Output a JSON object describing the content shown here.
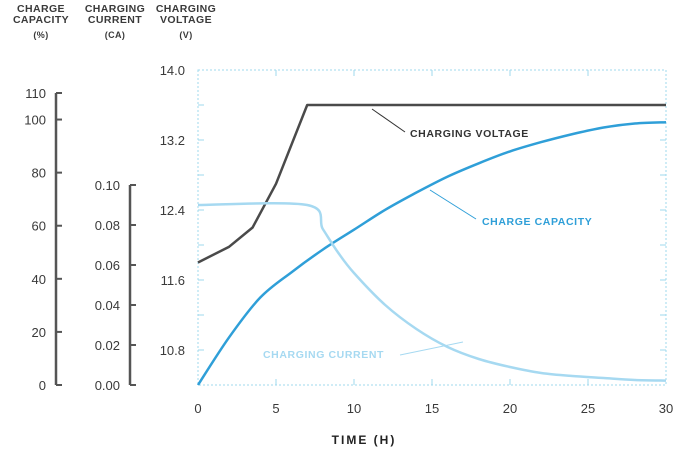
{
  "axis_headers": {
    "capacity": {
      "line1": "CHARGE",
      "line2": "CAPACITY",
      "unit": "(%)"
    },
    "current": {
      "line1": "CHARGING",
      "line2": "CURRENT",
      "unit": "(CA)"
    },
    "voltage": {
      "line1": "CHARGING",
      "line2": "VOLTAGE",
      "unit": "(V)"
    }
  },
  "colors": {
    "voltage": "#4a4a4a",
    "capacity": "#2f9fd8",
    "current": "#a6d9f1",
    "grid": "#9fd8ee",
    "axis": "#555555"
  },
  "chart_data": {
    "type": "line",
    "xlabel": "TIME (H)",
    "x_ticks": [
      "0",
      "5",
      "10",
      "15",
      "20",
      "25",
      "30"
    ],
    "xlim": [
      0,
      30
    ],
    "axes": {
      "voltage": {
        "ylim": [
          10.4,
          14.0
        ],
        "ticks": [
          "10.8",
          "11.6",
          "12.4",
          "13.2",
          "14.0"
        ]
      },
      "capacity": {
        "ylim": [
          0,
          110
        ],
        "ticks": [
          "0",
          "20",
          "40",
          "60",
          "80",
          "100",
          "110"
        ]
      },
      "current": {
        "ylim": [
          0.0,
          0.1
        ],
        "ticks": [
          "0.00",
          "0.02",
          "0.04",
          "0.06",
          "0.08",
          "0.10"
        ]
      }
    },
    "series": [
      {
        "name": "CHARGING VOLTAGE",
        "axis": "voltage",
        "x": [
          0,
          2,
          3.5,
          5,
          7,
          10,
          15,
          20,
          25,
          30
        ],
        "y": [
          11.8,
          11.98,
          12.2,
          12.7,
          13.6,
          13.6,
          13.6,
          13.6,
          13.6,
          13.6
        ]
      },
      {
        "name": "CHARGE CAPACITY",
        "axis": "capacity",
        "x": [
          0,
          2,
          4,
          6,
          8,
          10,
          12,
          14,
          16,
          18,
          20,
          22,
          24,
          26,
          28,
          30
        ],
        "y": [
          0,
          18,
          33,
          42.5,
          51,
          58.5,
          66,
          72.5,
          78.5,
          83.5,
          88,
          91.5,
          94.5,
          97,
          98.5,
          99
        ]
      },
      {
        "name": "CHARGING CURRENT",
        "axis": "current",
        "x": [
          0,
          7,
          8,
          9,
          10,
          12,
          14,
          16,
          18,
          20,
          22,
          24,
          26,
          28,
          30
        ],
        "y": [
          0.09,
          0.09,
          0.078,
          0.066,
          0.056,
          0.04,
          0.028,
          0.019,
          0.013,
          0.009,
          0.006,
          0.0045,
          0.0035,
          0.0025,
          0.0022
        ]
      }
    ]
  }
}
